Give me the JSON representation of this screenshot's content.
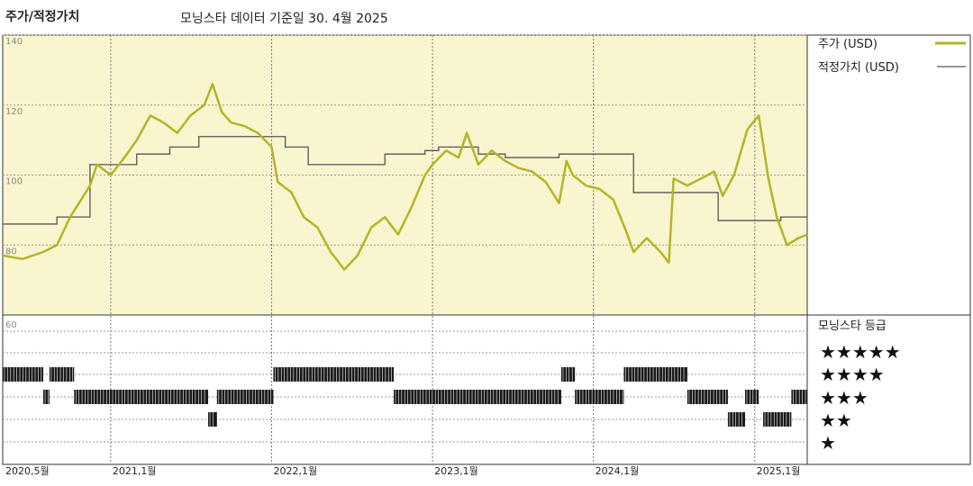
{
  "header": {
    "left_title": "주가/적정가치",
    "subtitle": "모닝스타 데이터 기준일 30. 4월 2025"
  },
  "legend": {
    "price_label": "주가 (USD)",
    "fair_value_label": "적정가치 (USD)",
    "rating_title": "모닝스타 등급",
    "stars": [
      "★★★★★",
      "★★★★",
      "★★★",
      "★★",
      "★"
    ]
  },
  "colors": {
    "price": "#b5b426",
    "fair_value": "#555555",
    "panel_bg": "#f9f5cf"
  },
  "chart_data": [
    {
      "type": "line",
      "title": "주가/적정가치",
      "subtitle": "모닝스타 데이터 기준일 30. 4월 2025",
      "x_range": [
        "2020-05-01",
        "2025-04-30"
      ],
      "ylim": [
        60,
        140
      ],
      "y_ticks": [
        140,
        120,
        100,
        80
      ],
      "x_tick_labels": [
        "2020,5월",
        "2021,1월",
        "2022,1월",
        "2023,1월",
        "2024,1월",
        "2025,1월"
      ],
      "series": [
        {
          "name": "주가 (USD)",
          "points": [
            [
              "2020-05-01",
              77
            ],
            [
              "2020-06-15",
              76
            ],
            [
              "2020-08-01",
              78
            ],
            [
              "2020-09-01",
              80
            ],
            [
              "2020-10-01",
              88
            ],
            [
              "2020-11-15",
              97
            ],
            [
              "2020-12-01",
              103
            ],
            [
              "2021-01-01",
              100
            ],
            [
              "2021-02-01",
              105
            ],
            [
              "2021-03-01",
              110
            ],
            [
              "2021-04-01",
              117
            ],
            [
              "2021-05-01",
              115
            ],
            [
              "2021-06-01",
              112
            ],
            [
              "2021-07-01",
              117
            ],
            [
              "2021-08-01",
              120
            ],
            [
              "2021-08-20",
              126
            ],
            [
              "2021-09-10",
              118
            ],
            [
              "2021-10-01",
              115
            ],
            [
              "2021-11-01",
              114
            ],
            [
              "2021-12-01",
              112
            ],
            [
              "2022-01-01",
              108
            ],
            [
              "2022-01-15",
              98
            ],
            [
              "2022-02-15",
              95
            ],
            [
              "2022-03-15",
              88
            ],
            [
              "2022-04-15",
              85
            ],
            [
              "2022-05-15",
              78
            ],
            [
              "2022-06-15",
              73
            ],
            [
              "2022-07-15",
              77
            ],
            [
              "2022-08-15",
              85
            ],
            [
              "2022-09-15",
              88
            ],
            [
              "2022-10-15",
              83
            ],
            [
              "2022-11-15",
              91
            ],
            [
              "2022-12-15",
              100
            ],
            [
              "2023-01-01",
              103
            ],
            [
              "2023-02-01",
              107
            ],
            [
              "2023-03-01",
              105
            ],
            [
              "2023-03-20",
              112
            ],
            [
              "2023-04-15",
              103
            ],
            [
              "2023-05-15",
              107
            ],
            [
              "2023-06-15",
              104
            ],
            [
              "2023-07-15",
              102
            ],
            [
              "2023-08-15",
              101
            ],
            [
              "2023-09-15",
              98
            ],
            [
              "2023-10-15",
              92
            ],
            [
              "2023-11-01",
              104
            ],
            [
              "2023-11-15",
              100
            ],
            [
              "2023-12-15",
              97
            ],
            [
              "2024-01-15",
              96
            ],
            [
              "2024-02-15",
              93
            ],
            [
              "2024-03-15",
              84
            ],
            [
              "2024-04-01",
              78
            ],
            [
              "2024-05-01",
              82
            ],
            [
              "2024-06-01",
              78
            ],
            [
              "2024-06-20",
              75
            ],
            [
              "2024-07-01",
              99
            ],
            [
              "2024-08-01",
              97
            ],
            [
              "2024-09-01",
              99
            ],
            [
              "2024-10-01",
              101
            ],
            [
              "2024-10-20",
              94
            ],
            [
              "2024-11-15",
              100
            ],
            [
              "2024-12-15",
              113
            ],
            [
              "2025-01-10",
              117
            ],
            [
              "2025-02-01",
              99
            ],
            [
              "2025-02-20",
              88
            ],
            [
              "2025-03-15",
              80
            ],
            [
              "2025-04-10",
              82
            ],
            [
              "2025-04-30",
              83
            ]
          ]
        },
        {
          "name": "적정가치 (USD)",
          "step": true,
          "points": [
            [
              "2020-05-01",
              86
            ],
            [
              "2020-09-01",
              88
            ],
            [
              "2020-11-15",
              103
            ],
            [
              "2021-01-01",
              103
            ],
            [
              "2021-03-01",
              106
            ],
            [
              "2021-05-15",
              108
            ],
            [
              "2021-07-20",
              111
            ],
            [
              "2022-01-01",
              111
            ],
            [
              "2022-02-01",
              108
            ],
            [
              "2022-03-25",
              103
            ],
            [
              "2022-09-15",
              106
            ],
            [
              "2022-12-15",
              107
            ],
            [
              "2023-01-15",
              108
            ],
            [
              "2023-04-15",
              106
            ],
            [
              "2023-06-15",
              105
            ],
            [
              "2023-10-15",
              106
            ],
            [
              "2024-04-01",
              95
            ],
            [
              "2024-10-10",
              87
            ],
            [
              "2025-03-01",
              88
            ],
            [
              "2025-04-30",
              88
            ]
          ]
        }
      ]
    },
    {
      "type": "heatmap",
      "title": "모닝스타 등급",
      "x_range": [
        "2020-05-01",
        "2025-04-30"
      ],
      "rows": [
        "★★★★★",
        "★★★★",
        "★★★",
        "★★",
        "★"
      ],
      "rating_periods": [
        {
          "from": "2020-05-01",
          "to": "2020-08-01",
          "stars": 4
        },
        {
          "from": "2020-08-01",
          "to": "2020-08-15",
          "stars": 3
        },
        {
          "from": "2020-08-15",
          "to": "2020-10-10",
          "stars": 4
        },
        {
          "from": "2020-10-10",
          "to": "2021-08-10",
          "stars": 3
        },
        {
          "from": "2021-08-10",
          "to": "2021-08-30",
          "stars": 2
        },
        {
          "from": "2021-08-30",
          "to": "2022-01-05",
          "stars": 3
        },
        {
          "from": "2022-01-05",
          "to": "2022-10-05",
          "stars": 4
        },
        {
          "from": "2022-10-05",
          "to": "2023-10-20",
          "stars": 3
        },
        {
          "from": "2023-10-20",
          "to": "2023-11-20",
          "stars": 4
        },
        {
          "from": "2023-11-20",
          "to": "2024-03-10",
          "stars": 3
        },
        {
          "from": "2024-03-10",
          "to": "2024-08-01",
          "stars": 4
        },
        {
          "from": "2024-08-01",
          "to": "2024-11-01",
          "stars": 3
        },
        {
          "from": "2024-11-01",
          "to": "2024-12-10",
          "stars": 2
        },
        {
          "from": "2024-12-10",
          "to": "2025-01-10",
          "stars": 3
        },
        {
          "from": "2025-01-20",
          "to": "2025-03-25",
          "stars": 2
        },
        {
          "from": "2025-03-25",
          "to": "2025-04-30",
          "stars": 3
        }
      ]
    }
  ]
}
